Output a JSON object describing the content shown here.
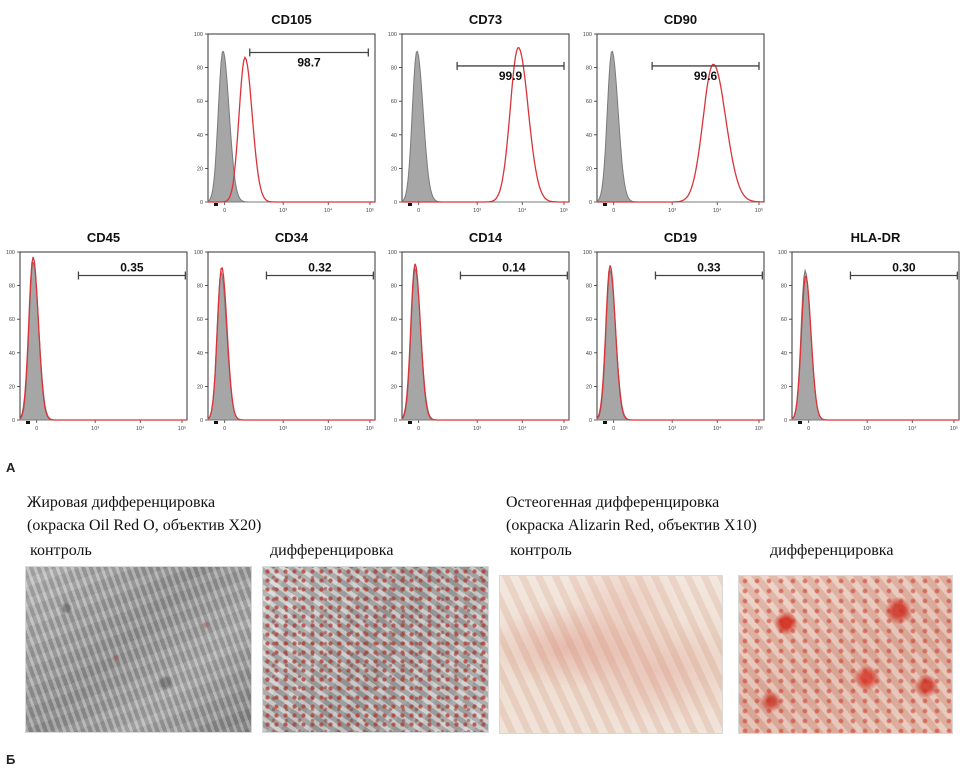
{
  "chart_data": {
    "type": "histogram-grid",
    "panels": [
      {
        "marker": "CD105",
        "gate_value": "98.7",
        "control_peak": {
          "x": 0.25,
          "y": 90,
          "w": 0.09
        },
        "sample_peak": {
          "x": 0.62,
          "y": 86,
          "w": 0.11
        }
      },
      {
        "marker": "CD73",
        "gate_value": "99.9",
        "control_peak": {
          "x": 0.25,
          "y": 90,
          "w": 0.09
        },
        "sample_peak": {
          "x": 1.95,
          "y": 92,
          "w": 0.15
        }
      },
      {
        "marker": "CD90",
        "gate_value": "99.6",
        "control_peak": {
          "x": 0.25,
          "y": 90,
          "w": 0.09
        },
        "sample_peak": {
          "x": 1.95,
          "y": 82,
          "w": 0.19
        }
      },
      {
        "marker": "CD45",
        "gate_value": "0.35",
        "control_peak": {
          "x": 0.22,
          "y": 94,
          "w": 0.08
        },
        "sample_peak": {
          "x": 0.22,
          "y": 97,
          "w": 0.08
        }
      },
      {
        "marker": "CD34",
        "gate_value": "0.32",
        "control_peak": {
          "x": 0.22,
          "y": 88,
          "w": 0.08
        },
        "sample_peak": {
          "x": 0.23,
          "y": 91,
          "w": 0.08
        }
      },
      {
        "marker": "CD14",
        "gate_value": "0.14",
        "control_peak": {
          "x": 0.22,
          "y": 90,
          "w": 0.08
        },
        "sample_peak": {
          "x": 0.22,
          "y": 93,
          "w": 0.08
        }
      },
      {
        "marker": "CD19",
        "gate_value": "0.33",
        "control_peak": {
          "x": 0.22,
          "y": 89,
          "w": 0.08
        },
        "sample_peak": {
          "x": 0.22,
          "y": 92,
          "w": 0.08
        }
      },
      {
        "marker": "HLA-DR",
        "gate_value": "0.30",
        "control_peak": {
          "x": 0.22,
          "y": 89,
          "w": 0.08
        },
        "sample_peak": {
          "x": 0.23,
          "y": 86,
          "w": 0.08
        }
      }
    ],
    "y_axis": {
      "range": [
        0,
        100
      ],
      "ticks": [
        "0",
        "20",
        "40",
        "60",
        "80",
        "100"
      ]
    },
    "x_axis": {
      "ticks": [
        "0",
        "10³",
        "10⁴",
        "10⁵"
      ]
    },
    "colors": {
      "control_fill": "#a6a6a6",
      "control_line": "#7a7a7a",
      "sample_line": "#d9343a",
      "gate": "#444444"
    }
  },
  "labels": {
    "panel_a": "А",
    "panel_b": "Б",
    "adipo_title": "Жировая дифференцировка",
    "adipo_stain": "(окраска Oil Red O, объектив X20)",
    "adipo_control": "контроль",
    "adipo_diff": "дифференцировка",
    "osteo_title": "Остеогенная дифференцировка",
    "osteo_stain": "(окраска Alizarin Red, объектив X10)",
    "osteo_control": "контроль",
    "osteo_diff": "дифференцировка"
  }
}
